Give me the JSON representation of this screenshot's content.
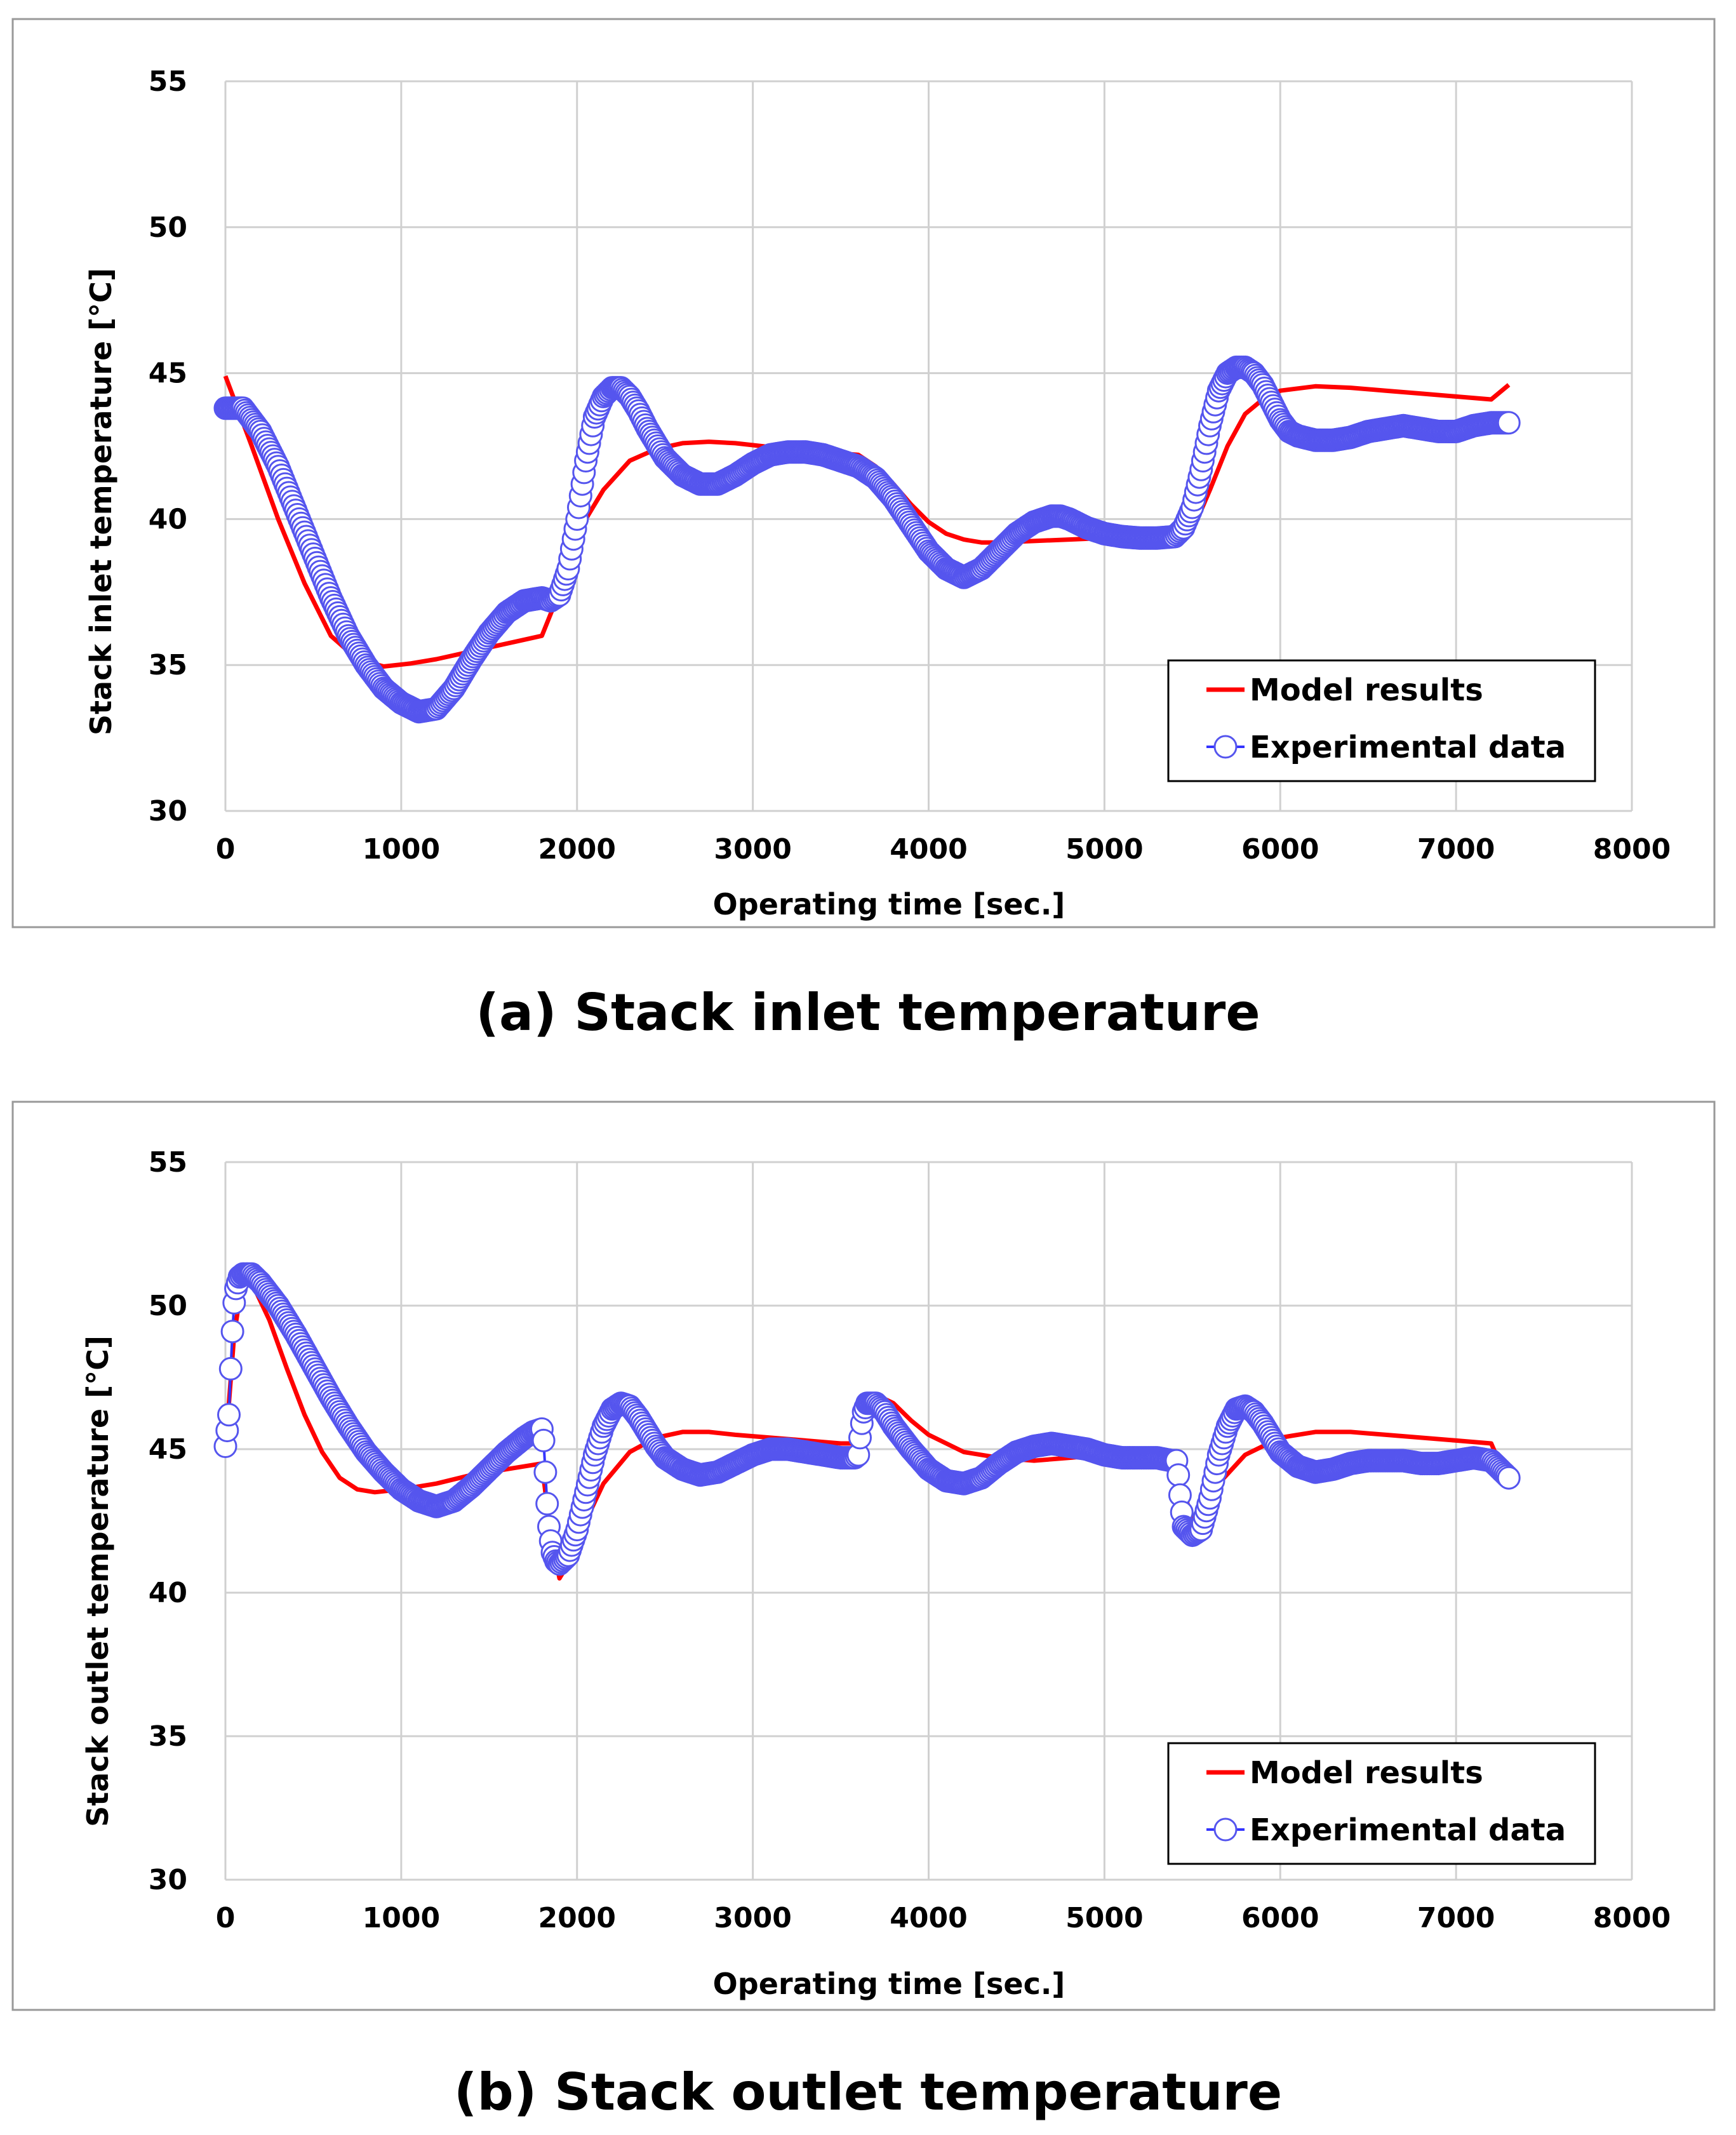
{
  "chart_data": [
    {
      "type": "line",
      "caption": "(a) Stack inlet temperature",
      "xlabel": "Operating time [sec.]",
      "ylabel": "Stack inlet temperature [°C]",
      "xlim": [
        0,
        8000
      ],
      "ylim": [
        30,
        55
      ],
      "xticks": [
        "0",
        "1000",
        "2000",
        "3000",
        "4000",
        "5000",
        "6000",
        "7000",
        "8000"
      ],
      "yticks": [
        "30",
        "35",
        "40",
        "45",
        "50",
        "55"
      ],
      "grid": true,
      "legend_position": "bottom-right",
      "colors": {
        "model": "#ff0000",
        "experiment": "#3333ff",
        "marker_edge": "#5555ee"
      },
      "series": [
        {
          "name": "Model results",
          "style": "line",
          "x": [
            0,
            150,
            300,
            450,
            600,
            750,
            900,
            1050,
            1200,
            1350,
            1500,
            1650,
            1800,
            1900,
            1950,
            2050,
            2150,
            2300,
            2450,
            2600,
            2750,
            2900,
            3050,
            3200,
            3400,
            3600,
            3700,
            3800,
            3900,
            4000,
            4100,
            4200,
            4300,
            4400,
            4600,
            4800,
            5000,
            5200,
            5400,
            5500,
            5600,
            5700,
            5800,
            5900,
            6000,
            6200,
            6400,
            6600,
            6800,
            7000,
            7200,
            7300
          ],
          "y": [
            44.9,
            42.5,
            40.0,
            37.8,
            36.0,
            35.2,
            34.95,
            35.05,
            35.2,
            35.4,
            35.6,
            35.8,
            36.0,
            37.5,
            38.5,
            40.0,
            41.0,
            42.0,
            42.4,
            42.6,
            42.65,
            42.6,
            42.5,
            42.4,
            42.3,
            42.2,
            41.8,
            41.2,
            40.5,
            39.9,
            39.5,
            39.3,
            39.2,
            39.2,
            39.25,
            39.3,
            39.35,
            39.4,
            39.45,
            39.6,
            41.0,
            42.5,
            43.6,
            44.1,
            44.4,
            44.55,
            44.5,
            44.4,
            44.3,
            44.2,
            44.1,
            44.6
          ]
        },
        {
          "name": "Experimental data",
          "style": "markers",
          "x": [
            0,
            100,
            200,
            300,
            400,
            500,
            600,
            700,
            800,
            900,
            1000,
            1100,
            1200,
            1300,
            1400,
            1500,
            1600,
            1700,
            1800,
            1850,
            1900,
            1950,
            2000,
            2050,
            2100,
            2150,
            2200,
            2250,
            2300,
            2350,
            2400,
            2450,
            2500,
            2600,
            2700,
            2800,
            2900,
            3000,
            3100,
            3200,
            3300,
            3400,
            3500,
            3600,
            3700,
            3800,
            3900,
            4000,
            4100,
            4200,
            4300,
            4400,
            4500,
            4600,
            4700,
            4750,
            4800,
            4900,
            5000,
            5100,
            5200,
            5300,
            5400,
            5450,
            5500,
            5550,
            5600,
            5650,
            5700,
            5750,
            5800,
            5850,
            5900,
            5950,
            6000,
            6050,
            6100,
            6200,
            6300,
            6400,
            6500,
            6600,
            6700,
            6800,
            6900,
            7000,
            7100,
            7200,
            7300
          ],
          "y": [
            43.8,
            43.8,
            43.0,
            41.8,
            40.3,
            38.8,
            37.3,
            36.0,
            35.0,
            34.2,
            33.7,
            33.4,
            33.5,
            34.2,
            35.2,
            36.1,
            36.8,
            37.2,
            37.3,
            37.2,
            37.4,
            38.3,
            40.0,
            42.0,
            43.5,
            44.2,
            44.5,
            44.5,
            44.2,
            43.7,
            43.1,
            42.6,
            42.1,
            41.5,
            41.2,
            41.2,
            41.5,
            41.9,
            42.2,
            42.3,
            42.3,
            42.2,
            42.0,
            41.8,
            41.4,
            40.7,
            39.8,
            38.9,
            38.3,
            38.0,
            38.3,
            38.9,
            39.5,
            39.9,
            40.1,
            40.1,
            40.0,
            39.7,
            39.5,
            39.4,
            39.35,
            39.35,
            39.4,
            39.7,
            40.4,
            41.7,
            43.2,
            44.4,
            45.0,
            45.2,
            45.2,
            45.0,
            44.6,
            44.0,
            43.4,
            43.0,
            42.85,
            42.7,
            42.7,
            42.8,
            43.0,
            43.1,
            43.2,
            43.1,
            43.0,
            43.0,
            43.2,
            43.3,
            43.3
          ]
        }
      ]
    },
    {
      "type": "line",
      "caption": "(b) Stack outlet temperature",
      "xlabel": "Operating time [sec.]",
      "ylabel": "Stack outlet temperature [°C]",
      "xlim": [
        0,
        8000
      ],
      "ylim": [
        30,
        55
      ],
      "xticks": [
        "0",
        "1000",
        "2000",
        "3000",
        "4000",
        "5000",
        "6000",
        "7000",
        "8000"
      ],
      "yticks": [
        "30",
        "35",
        "40",
        "45",
        "50",
        "55"
      ],
      "grid": true,
      "legend_position": "bottom-right",
      "colors": {
        "model": "#ff0000",
        "experiment": "#3333ff",
        "marker_edge": "#5555ee"
      },
      "series": [
        {
          "name": "Model results",
          "style": "line",
          "x": [
            0,
            50,
            100,
            150,
            250,
            350,
            450,
            550,
            650,
            750,
            850,
            1000,
            1200,
            1400,
            1600,
            1800,
            1850,
            1900,
            1950,
            2050,
            2150,
            2300,
            2450,
            2600,
            2750,
            2900,
            3100,
            3300,
            3500,
            3600,
            3650,
            3700,
            3800,
            3900,
            4000,
            4200,
            4400,
            4600,
            4800,
            5000,
            5200,
            5400,
            5450,
            5500,
            5550,
            5650,
            5800,
            6000,
            6200,
            6400,
            6600,
            6800,
            7000,
            7200,
            7250,
            7300
          ],
          "y": [
            45.0,
            49.0,
            51.0,
            50.8,
            49.5,
            47.8,
            46.2,
            44.9,
            44.0,
            43.6,
            43.5,
            43.6,
            43.8,
            44.1,
            44.3,
            44.5,
            42.0,
            40.5,
            41.0,
            42.5,
            43.8,
            44.9,
            45.4,
            45.6,
            45.6,
            45.5,
            45.4,
            45.3,
            45.2,
            45.2,
            46.0,
            46.9,
            46.6,
            46.0,
            45.5,
            44.9,
            44.7,
            44.6,
            44.7,
            44.8,
            44.8,
            44.8,
            43.5,
            42.6,
            42.8,
            43.8,
            44.8,
            45.4,
            45.6,
            45.6,
            45.5,
            45.4,
            45.3,
            45.2,
            44.5,
            44.0
          ]
        },
        {
          "name": "Experimental data",
          "style": "markers",
          "x": [
            0,
            20,
            30,
            40,
            50,
            60,
            80,
            100,
            150,
            200,
            300,
            400,
            500,
            600,
            700,
            800,
            900,
            1000,
            1100,
            1200,
            1300,
            1400,
            1500,
            1600,
            1700,
            1750,
            1800,
            1810,
            1820,
            1830,
            1840,
            1850,
            1860,
            1880,
            1900,
            1950,
            2000,
            2050,
            2100,
            2150,
            2200,
            2250,
            2300,
            2350,
            2400,
            2450,
            2500,
            2600,
            2700,
            2800,
            2900,
            3000,
            3100,
            3200,
            3300,
            3400,
            3500,
            3580,
            3600,
            3610,
            3620,
            3630,
            3650,
            3700,
            3750,
            3800,
            3900,
            4000,
            4100,
            4200,
            4300,
            4400,
            4500,
            4600,
            4700,
            4800,
            4900,
            5000,
            5100,
            5200,
            5300,
            5380,
            5400,
            5410,
            5420,
            5430,
            5440,
            5450,
            5500,
            5550,
            5600,
            5650,
            5700,
            5750,
            5800,
            5850,
            5900,
            5950,
            6000,
            6100,
            6200,
            6300,
            6400,
            6500,
            6600,
            6700,
            6800,
            6900,
            7000,
            7100,
            7200,
            7250,
            7300
          ],
          "y": [
            45.1,
            46.2,
            47.8,
            49.1,
            50.1,
            50.6,
            51.0,
            51.1,
            51.1,
            50.8,
            50.0,
            49.0,
            47.9,
            46.8,
            45.8,
            44.9,
            44.2,
            43.6,
            43.2,
            43.0,
            43.2,
            43.7,
            44.3,
            44.9,
            45.4,
            45.6,
            45.7,
            45.3,
            44.2,
            43.1,
            42.3,
            41.8,
            41.4,
            41.1,
            41.0,
            41.3,
            42.2,
            43.5,
            44.8,
            45.8,
            46.4,
            46.6,
            46.5,
            46.1,
            45.6,
            45.1,
            44.7,
            44.3,
            44.1,
            44.2,
            44.5,
            44.8,
            45.0,
            45.0,
            44.9,
            44.8,
            44.7,
            44.7,
            44.8,
            45.4,
            45.9,
            46.3,
            46.6,
            46.6,
            46.3,
            45.8,
            45.0,
            44.3,
            43.9,
            43.8,
            44.0,
            44.5,
            44.9,
            45.1,
            45.2,
            45.1,
            45.0,
            44.8,
            44.7,
            44.7,
            44.7,
            44.6,
            44.6,
            44.6,
            44.1,
            43.4,
            42.8,
            42.3,
            42.0,
            42.2,
            43.3,
            44.8,
            45.8,
            46.4,
            46.5,
            46.3,
            45.9,
            45.4,
            44.9,
            44.4,
            44.2,
            44.3,
            44.5,
            44.6,
            44.6,
            44.6,
            44.5,
            44.5,
            44.6,
            44.7,
            44.6,
            44.3,
            44.0
          ]
        }
      ]
    }
  ]
}
